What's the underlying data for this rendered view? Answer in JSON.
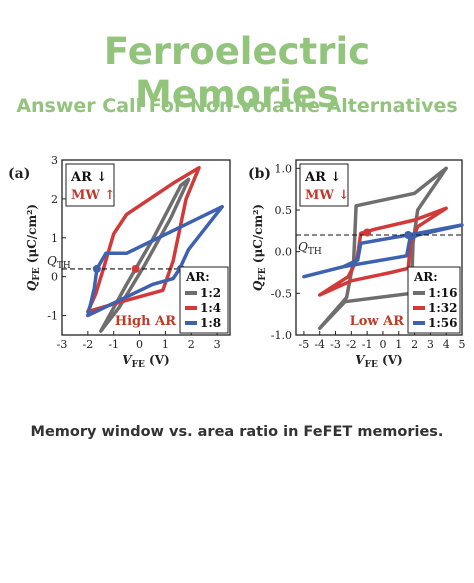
{
  "header": {
    "title": "Ferroelectric Memories",
    "subtitle": "Answer Call For Non-Volatile Alternatives"
  },
  "caption": "Memory window vs. area ratio in FeFET memories.",
  "colors": {
    "title": "#92c47c",
    "gray": "#6e6e6e",
    "red": "#d23a3a",
    "blue": "#3e62b0",
    "annotation": "#c0392b"
  },
  "chart_data": [
    {
      "type": "line",
      "panel_label": "(a)",
      "xlabel_main": "V",
      "xlabel_sub": "FE",
      "xlabel_unit": " (V)",
      "ylabel_main": "Q",
      "ylabel_sub": "FE",
      "ylabel_unit": " (μC/cm²)",
      "xlim": [
        -3,
        3.5
      ],
      "ylim": [
        -1.5,
        3
      ],
      "xticks": [
        -3,
        -2,
        -1,
        0,
        1,
        2,
        3
      ],
      "yticks": [
        -1,
        0,
        1,
        2,
        3
      ],
      "threshold": {
        "y": 0.2,
        "label_main": "Q",
        "label_sub": "TH"
      },
      "note": {
        "line1": "AR",
        "line1_arrow": "↓",
        "line2": "MW",
        "line2_arrow": "↑"
      },
      "annotation": "High AR",
      "legend_title": "AR:",
      "legend_position": "bottom-right",
      "series": [
        {
          "name": "1:2",
          "color": "#6e6e6e",
          "upper": [
            [
              -1.5,
              -1.4
            ],
            [
              -0.5,
              -0.2
            ],
            [
              0.5,
              0.95
            ],
            [
              1.6,
              2.35
            ],
            [
              1.9,
              2.5
            ]
          ],
          "lower": [
            [
              1.9,
              2.5
            ],
            [
              1.2,
              1.5
            ],
            [
              0.2,
              0.3
            ],
            [
              -0.8,
              -0.8
            ],
            [
              -1.5,
              -1.4
            ]
          ]
        },
        {
          "name": "1:4",
          "color": "#d23a3a",
          "upper": [
            [
              -2.0,
              -0.9
            ],
            [
              -1.0,
              -0.7
            ],
            [
              0.9,
              -0.35
            ],
            [
              1.3,
              0.4
            ],
            [
              1.8,
              2.0
            ],
            [
              2.3,
              2.8
            ]
          ],
          "lower": [
            [
              2.3,
              2.8
            ],
            [
              1.3,
              2.4
            ],
            [
              -0.5,
              1.6
            ],
            [
              -1.0,
              1.1
            ],
            [
              -1.4,
              0.2
            ],
            [
              -1.7,
              -0.45
            ],
            [
              -2.0,
              -0.9
            ]
          ]
        },
        {
          "name": "1:8",
          "color": "#3e62b0",
          "upper": [
            [
              -2.0,
              -1.0
            ],
            [
              0.5,
              -0.2
            ],
            [
              1.3,
              -0.05
            ],
            [
              1.55,
              0.2
            ],
            [
              1.9,
              0.7
            ],
            [
              3.2,
              1.8
            ]
          ],
          "lower": [
            [
              3.2,
              1.8
            ],
            [
              -0.5,
              0.6
            ],
            [
              -1.3,
              0.6
            ],
            [
              -1.65,
              0.2
            ],
            [
              -1.75,
              -0.3
            ],
            [
              -2.0,
              -1.0
            ]
          ]
        }
      ],
      "markers": [
        {
          "series": "1:8",
          "x": -1.65,
          "y": 0.2
        },
        {
          "series": "1:4",
          "x": -0.15,
          "y": 0.2
        },
        {
          "series": "1:8",
          "x": 1.6,
          "y": 0.2
        }
      ]
    },
    {
      "type": "line",
      "panel_label": "(b)",
      "xlabel_main": "V",
      "xlabel_sub": "FE",
      "xlabel_unit": " (V)",
      "ylabel_main": "Q",
      "ylabel_sub": "FE",
      "ylabel_unit": " (μC/cm²)",
      "xlim": [
        -5.5,
        5
      ],
      "ylim": [
        -1,
        1.1
      ],
      "xticks": [
        -5,
        -4,
        -3,
        -2,
        -1,
        0,
        1,
        2,
        3,
        4,
        5
      ],
      "yticks": [
        -1.0,
        -0.5,
        0.0,
        0.5,
        1.0
      ],
      "ytick_labels": [
        "-1.0",
        "-0.5",
        "0.0",
        "0.5",
        "1.0"
      ],
      "threshold": {
        "y": 0.2,
        "label_main": "Q",
        "label_sub": "TH"
      },
      "note": {
        "line1": "AR",
        "line1_arrow": "↓",
        "line2": "MW",
        "line2_arrow": "↓"
      },
      "annotation": "Low AR",
      "legend_title": "AR:",
      "legend_position": "bottom-right",
      "series": [
        {
          "name": "1:16",
          "color": "#6e6e6e",
          "upper": [
            [
              -4.0,
              -0.92
            ],
            [
              -2.4,
              -0.6
            ],
            [
              1.8,
              -0.5
            ],
            [
              1.9,
              0.1
            ],
            [
              2.2,
              0.5
            ],
            [
              4.0,
              1.0
            ]
          ],
          "lower": [
            [
              4.0,
              1.0
            ],
            [
              2.0,
              0.7
            ],
            [
              -1.7,
              0.55
            ],
            [
              -1.85,
              -0.1
            ],
            [
              -2.3,
              -0.55
            ],
            [
              -4.0,
              -0.92
            ]
          ]
        },
        {
          "name": "1:32",
          "color": "#d23a3a",
          "upper": [
            [
              -4.0,
              -0.52
            ],
            [
              -2.0,
              -0.35
            ],
            [
              0.5,
              -0.25
            ],
            [
              1.6,
              -0.2
            ],
            [
              1.75,
              0.1
            ],
            [
              2.2,
              0.3
            ],
            [
              4.0,
              0.52
            ]
          ],
          "lower": [
            [
              4.0,
              0.52
            ],
            [
              2.0,
              0.38
            ],
            [
              -0.5,
              0.27
            ],
            [
              -1.4,
              0.22
            ],
            [
              -1.65,
              -0.1
            ],
            [
              -2.2,
              -0.3
            ],
            [
              -4.0,
              -0.52
            ]
          ]
        },
        {
          "name": "1:56",
          "color": "#3e62b0",
          "upper": [
            [
              -5.0,
              -0.3
            ],
            [
              -2.5,
              -0.18
            ],
            [
              1.5,
              -0.05
            ],
            [
              1.7,
              0.15
            ],
            [
              2.2,
              0.2
            ],
            [
              5.0,
              0.32
            ]
          ],
          "lower": [
            [
              5.0,
              0.32
            ],
            [
              2.2,
              0.22
            ],
            [
              -1.4,
              0.1
            ],
            [
              -1.6,
              -0.1
            ],
            [
              -2.5,
              -0.18
            ],
            [
              -5.0,
              -0.3
            ]
          ]
        }
      ],
      "markers": [
        {
          "series": "1:32",
          "x": -1.0,
          "y": 0.23
        },
        {
          "series": "1:56",
          "x": 1.6,
          "y": 0.2
        }
      ]
    }
  ]
}
